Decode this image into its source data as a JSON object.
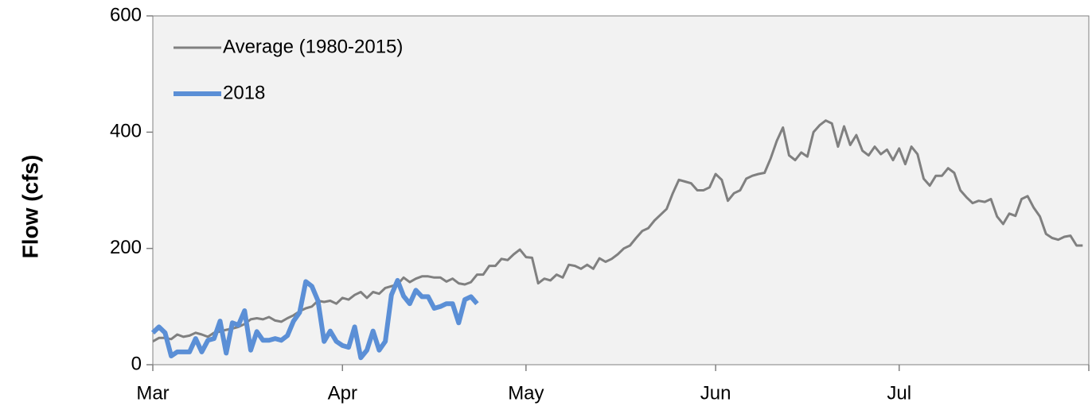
{
  "chart_data": {
    "type": "line",
    "y_label": "Flow (cfs)",
    "categories": [
      "Mar",
      null,
      null,
      null,
      null,
      null,
      null,
      null,
      null,
      null,
      null,
      null,
      null,
      null,
      null,
      null,
      null,
      null,
      null,
      null,
      null,
      null,
      null,
      null,
      null,
      null,
      null,
      null,
      null,
      null,
      null,
      "Apr",
      null,
      null,
      null,
      null,
      null,
      null,
      null,
      null,
      null,
      null,
      null,
      null,
      null,
      null,
      null,
      null,
      null,
      null,
      null,
      null,
      null,
      null,
      null,
      null,
      null,
      null,
      null,
      null,
      null,
      "May",
      null,
      null,
      null,
      null,
      null,
      null,
      null,
      null,
      null,
      null,
      null,
      null,
      null,
      null,
      null,
      null,
      null,
      null,
      null,
      null,
      null,
      null,
      null,
      null,
      null,
      null,
      null,
      null,
      null,
      null,
      "Jun",
      null,
      null,
      null,
      null,
      null,
      null,
      null,
      null,
      null,
      null,
      null,
      null,
      null,
      null,
      null,
      null,
      null,
      null,
      null,
      null,
      null,
      null,
      null,
      null,
      null,
      null,
      null,
      null,
      null,
      "Jul",
      null,
      null,
      null,
      null,
      null,
      null,
      null,
      null,
      null,
      null,
      null,
      null,
      null,
      null,
      null,
      null,
      null,
      null,
      null,
      null,
      null,
      null,
      null,
      null,
      null,
      null,
      null,
      null,
      null,
      null
    ],
    "series": [
      {
        "name": "Average (1980-2015)",
        "color": "#808080",
        "width": 3,
        "values": [
          40,
          46,
          46,
          44,
          52,
          48,
          50,
          55,
          52,
          48,
          55,
          57,
          60,
          62,
          65,
          70,
          78,
          80,
          78,
          82,
          76,
          74,
          80,
          85,
          92,
          97,
          100,
          110,
          108,
          110,
          105,
          115,
          112,
          120,
          125,
          115,
          125,
          122,
          132,
          135,
          138,
          150,
          142,
          148,
          152,
          152,
          150,
          150,
          143,
          148,
          140,
          138,
          142,
          155,
          155,
          170,
          170,
          182,
          180,
          190,
          198,
          185,
          184,
          140,
          148,
          145,
          155,
          150,
          172,
          170,
          165,
          172,
          165,
          183,
          177,
          182,
          190,
          200,
          205,
          218,
          230,
          235,
          248,
          258,
          268,
          295,
          318,
          315,
          312,
          300,
          300,
          305,
          328,
          318,
          282,
          295,
          300,
          320,
          325,
          328,
          330,
          355,
          385,
          408,
          360,
          352,
          365,
          358,
          400,
          412,
          420,
          415,
          375,
          410,
          378,
          395,
          368,
          360,
          375,
          362,
          370,
          352,
          372,
          345,
          375,
          362,
          320,
          308,
          325,
          325,
          338,
          330,
          300,
          288,
          278,
          282,
          280,
          285,
          255,
          242,
          260,
          256,
          285,
          290,
          270,
          255,
          225,
          218,
          215,
          220,
          222,
          205,
          205
        ]
      },
      {
        "name": "2018",
        "color": "#5b8fd6",
        "width": 6,
        "values": [
          55,
          65,
          55,
          15,
          22,
          22,
          22,
          45,
          22,
          42,
          45,
          75,
          20,
          72,
          68,
          93,
          25,
          57,
          42,
          42,
          45,
          42,
          50,
          75,
          90,
          143,
          135,
          110,
          40,
          58,
          40,
          33,
          30,
          65,
          12,
          25,
          58,
          25,
          40,
          120,
          145,
          118,
          105,
          128,
          117,
          117,
          97,
          100,
          105,
          105,
          72,
          112,
          117,
          105,
          null,
          null,
          null,
          null,
          null,
          null,
          null,
          null,
          null,
          null,
          null,
          null,
          null,
          null,
          null,
          null,
          null,
          null,
          null,
          null,
          null,
          null,
          null,
          null,
          null,
          null,
          null,
          null,
          null,
          null,
          null,
          null,
          null,
          null,
          null,
          null,
          null,
          null,
          null,
          null,
          null,
          null,
          null,
          null,
          null,
          null,
          null,
          null,
          null,
          null,
          null,
          null,
          null,
          null,
          null,
          null,
          null,
          null,
          null,
          null,
          null,
          null,
          null,
          null,
          null,
          null,
          null,
          null,
          null,
          null,
          null,
          null,
          null,
          null,
          null,
          null,
          null,
          null,
          null,
          null,
          null,
          null,
          null,
          null,
          null,
          null,
          null,
          null,
          null,
          null,
          null,
          null,
          null,
          null,
          null,
          null,
          null,
          null,
          null
        ]
      }
    ],
    "ylim": [
      0,
      600
    ],
    "yticks": [
      0,
      200,
      400,
      600
    ],
    "grid": false,
    "legend": "upper left",
    "background": "#f2f2f2"
  }
}
